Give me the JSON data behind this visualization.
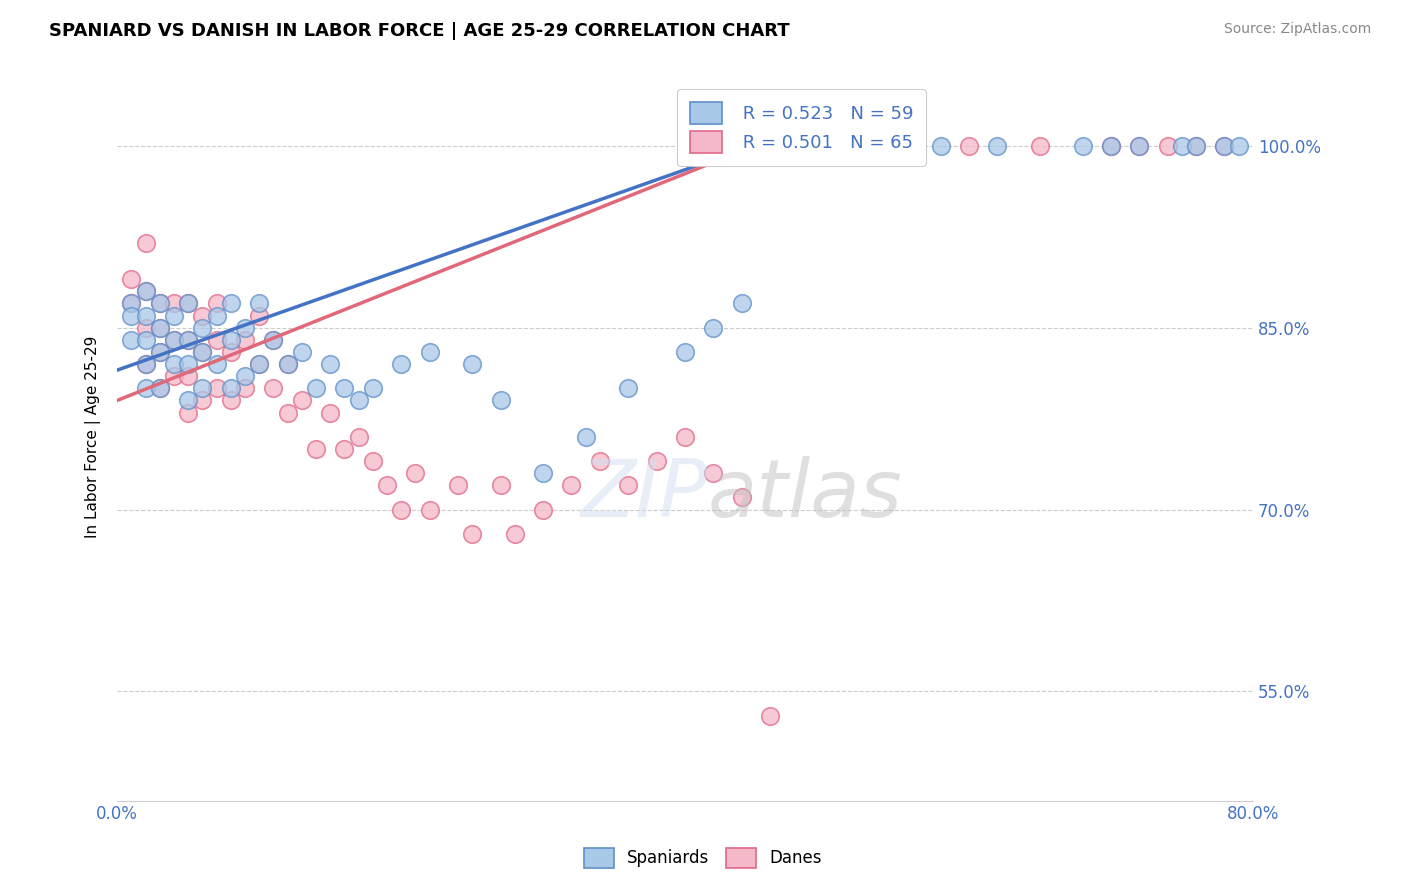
{
  "title": "SPANIARD VS DANISH IN LABOR FORCE | AGE 25-29 CORRELATION CHART",
  "source": "Source: ZipAtlas.com",
  "ylabel": "In Labor Force | Age 25-29",
  "xlim": [
    0.0,
    0.8
  ],
  "ylim": [
    0.46,
    1.06
  ],
  "ytick_labels": [
    "55.0%",
    "70.0%",
    "85.0%",
    "100.0%"
  ],
  "ytick_positions": [
    0.55,
    0.7,
    0.85,
    1.0
  ],
  "xtick_positions": [
    0.0,
    0.1,
    0.2,
    0.3,
    0.4,
    0.5,
    0.6,
    0.7,
    0.8
  ],
  "blue_R": 0.523,
  "blue_N": 59,
  "pink_R": 0.501,
  "pink_N": 65,
  "blue_color": "#a8c8e8",
  "pink_color": "#f4b8c8",
  "blue_edge_color": "#6090c8",
  "pink_edge_color": "#e06888",
  "blue_line_color": "#4472c4",
  "pink_line_color": "#e06878",
  "legend_label_blue": "Spaniards",
  "legend_label_pink": "Danes",
  "blue_scatter_x": [
    0.01,
    0.01,
    0.01,
    0.02,
    0.02,
    0.02,
    0.02,
    0.02,
    0.03,
    0.03,
    0.03,
    0.03,
    0.04,
    0.04,
    0.04,
    0.05,
    0.05,
    0.05,
    0.05,
    0.06,
    0.06,
    0.06,
    0.07,
    0.07,
    0.08,
    0.08,
    0.08,
    0.09,
    0.09,
    0.1,
    0.1,
    0.11,
    0.12,
    0.13,
    0.14,
    0.15,
    0.16,
    0.17,
    0.18,
    0.2,
    0.22,
    0.25,
    0.27,
    0.3,
    0.33,
    0.36,
    0.4,
    0.42,
    0.44,
    0.58,
    0.62,
    0.68,
    0.7,
    0.72,
    0.75,
    0.76,
    0.78,
    0.79
  ],
  "blue_scatter_y": [
    0.87,
    0.86,
    0.84,
    0.88,
    0.86,
    0.84,
    0.82,
    0.8,
    0.87,
    0.85,
    0.83,
    0.8,
    0.86,
    0.84,
    0.82,
    0.87,
    0.84,
    0.82,
    0.79,
    0.85,
    0.83,
    0.8,
    0.86,
    0.82,
    0.87,
    0.84,
    0.8,
    0.85,
    0.81,
    0.87,
    0.82,
    0.84,
    0.82,
    0.83,
    0.8,
    0.82,
    0.8,
    0.79,
    0.8,
    0.82,
    0.83,
    0.82,
    0.79,
    0.73,
    0.76,
    0.8,
    0.83,
    0.85,
    0.87,
    1.0,
    1.0,
    1.0,
    1.0,
    1.0,
    1.0,
    1.0,
    1.0,
    1.0
  ],
  "pink_scatter_x": [
    0.01,
    0.01,
    0.02,
    0.02,
    0.02,
    0.02,
    0.03,
    0.03,
    0.03,
    0.03,
    0.04,
    0.04,
    0.04,
    0.05,
    0.05,
    0.05,
    0.05,
    0.06,
    0.06,
    0.06,
    0.07,
    0.07,
    0.07,
    0.08,
    0.08,
    0.09,
    0.09,
    0.1,
    0.1,
    0.11,
    0.11,
    0.12,
    0.12,
    0.13,
    0.14,
    0.15,
    0.16,
    0.17,
    0.18,
    0.19,
    0.2,
    0.21,
    0.22,
    0.24,
    0.25,
    0.27,
    0.28,
    0.3,
    0.32,
    0.34,
    0.36,
    0.38,
    0.4,
    0.42,
    0.44,
    0.46,
    0.6,
    0.65,
    0.7,
    0.72,
    0.74,
    0.76,
    0.78
  ],
  "pink_scatter_y": [
    0.89,
    0.87,
    0.92,
    0.88,
    0.85,
    0.82,
    0.87,
    0.85,
    0.83,
    0.8,
    0.87,
    0.84,
    0.81,
    0.87,
    0.84,
    0.81,
    0.78,
    0.86,
    0.83,
    0.79,
    0.87,
    0.84,
    0.8,
    0.83,
    0.79,
    0.84,
    0.8,
    0.86,
    0.82,
    0.84,
    0.8,
    0.82,
    0.78,
    0.79,
    0.75,
    0.78,
    0.75,
    0.76,
    0.74,
    0.72,
    0.7,
    0.73,
    0.7,
    0.72,
    0.68,
    0.72,
    0.68,
    0.7,
    0.72,
    0.74,
    0.72,
    0.74,
    0.76,
    0.73,
    0.71,
    0.53,
    1.0,
    1.0,
    1.0,
    1.0,
    1.0,
    1.0,
    1.0
  ],
  "blue_line_x0": 0.0,
  "blue_line_x1": 0.46,
  "blue_line_y0": 0.815,
  "blue_line_y1": 1.005,
  "pink_line_x0": 0.0,
  "pink_line_x1": 0.46,
  "pink_line_y0": 0.79,
  "pink_line_y1": 1.005
}
